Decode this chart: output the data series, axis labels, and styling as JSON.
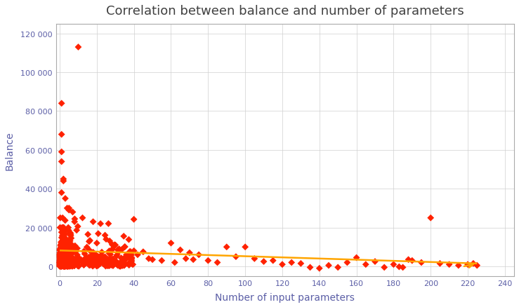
{
  "title": "Correlation between balance and number of parameters",
  "xlabel": "Number of input parameters",
  "ylabel": "Balance",
  "xlim": [
    -2,
    245
  ],
  "ylim": [
    -5000,
    125000
  ],
  "xticks": [
    0,
    20,
    40,
    60,
    80,
    100,
    120,
    140,
    160,
    180,
    200,
    220,
    240
  ],
  "yticks": [
    0,
    20000,
    40000,
    60000,
    80000,
    100000,
    120000
  ],
  "scatter_color": "#FF2200",
  "trendline_color": "#FFA500",
  "background_color": "#FFFFFF",
  "grid_color": "#D0D0D0",
  "title_color": "#404040",
  "axis_label_color": "#5B5EA6",
  "tick_label_color": "#5B5EA6",
  "marker": "D",
  "marker_size": 25,
  "seed": 42,
  "trend_x0": 0,
  "trend_x1": 225,
  "trend_y0": 8200,
  "trend_y1": 1500
}
